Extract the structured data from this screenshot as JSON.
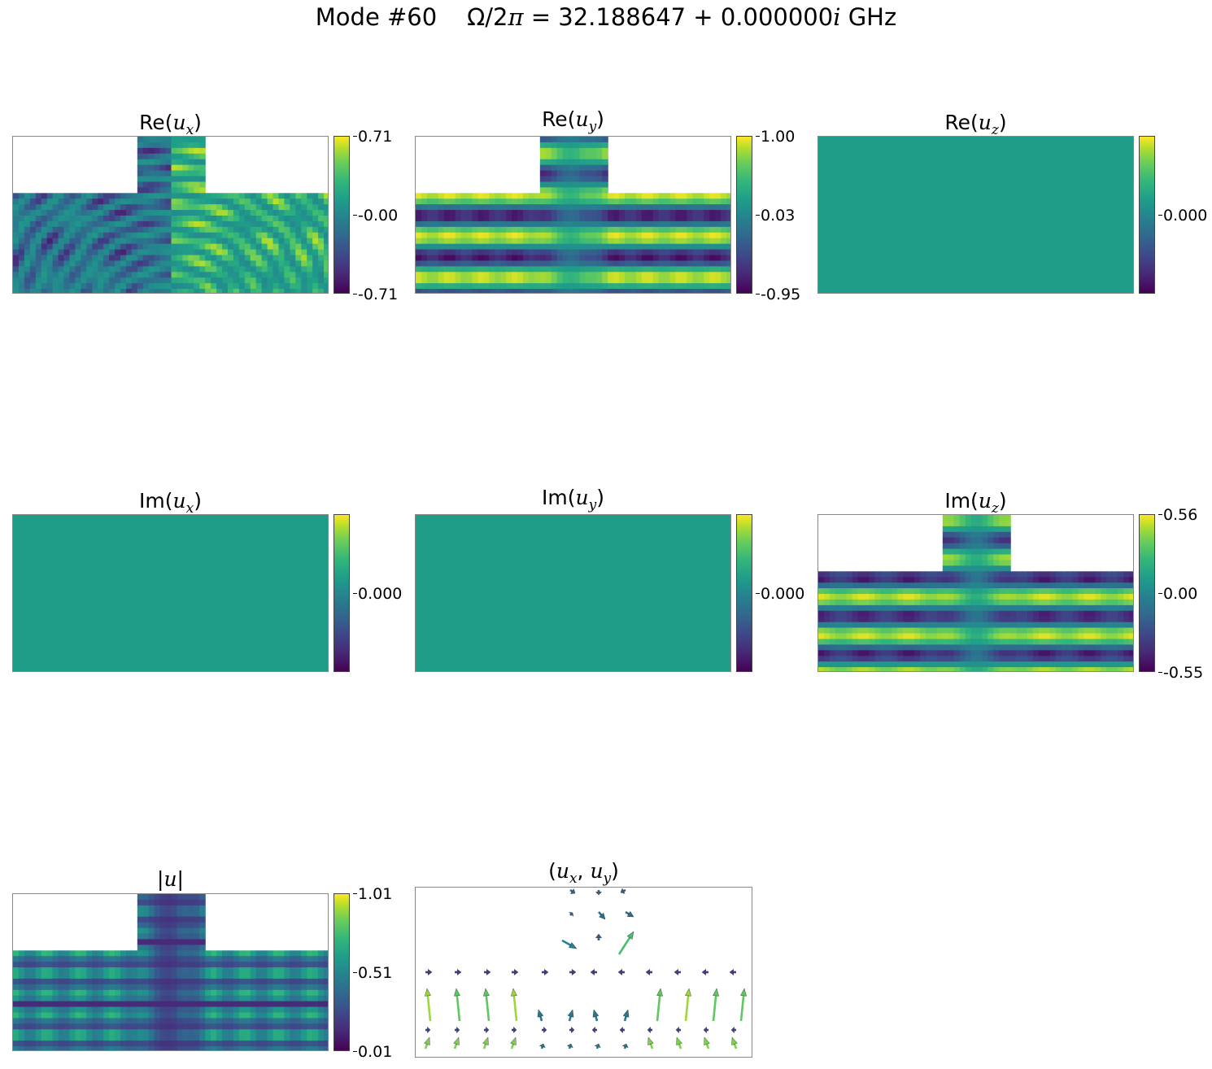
{
  "figure": {
    "mode_label": "Mode #60",
    "freq_lhs": "Ω/2",
    "freq_pi": "π",
    "freq_rhs": " = 32.188647 + 0.000000",
    "freq_i": "i",
    "freq_unit": " GHz"
  },
  "chart_data": [
    {
      "type": "heatmap",
      "title_prefix": "Re(",
      "var": "u",
      "sub": "x",
      "title_suffix": ")",
      "pattern": "ux",
      "colorbar_ticks": [
        "0.71",
        "-0.00",
        "-0.71"
      ],
      "colormap": "viridis"
    },
    {
      "type": "heatmap",
      "title_prefix": "Re(",
      "var": "u",
      "sub": "y",
      "title_suffix": ")",
      "pattern": "uy",
      "colorbar_ticks": [
        "1.00",
        "0.03",
        "-0.95"
      ],
      "colormap": "viridis"
    },
    {
      "type": "heatmap",
      "title_prefix": "Re(",
      "var": "u",
      "sub": "z",
      "title_suffix": ")",
      "pattern": "flat",
      "colorbar_ticks": [
        "0.000"
      ],
      "colormap": "viridis"
    },
    {
      "type": "heatmap",
      "title_prefix": "Im(",
      "var": "u",
      "sub": "x",
      "title_suffix": ")",
      "pattern": "flat",
      "colorbar_ticks": [
        "0.000"
      ],
      "colormap": "viridis"
    },
    {
      "type": "heatmap",
      "title_prefix": "Im(",
      "var": "u",
      "sub": "y",
      "title_suffix": ")",
      "pattern": "flat",
      "colorbar_ticks": [
        "0.000"
      ],
      "colormap": "viridis"
    },
    {
      "type": "heatmap",
      "title_prefix": "Im(",
      "var": "u",
      "sub": "z",
      "title_suffix": ")",
      "pattern": "uz",
      "colorbar_ticks": [
        "0.56",
        "0.00",
        "-0.55"
      ],
      "colormap": "viridis"
    },
    {
      "type": "heatmap",
      "title_prefix": "|",
      "var": "u",
      "sub": "",
      "title_suffix": "|",
      "pattern": "abs",
      "colorbar_ticks": [
        "1.01",
        "0.51",
        "0.01"
      ],
      "colormap": "viridis"
    },
    {
      "type": "quiver",
      "title_prefix": "(",
      "var": "u",
      "sub": "x",
      "var2": "u",
      "sub2": "y",
      "title_suffix": ")"
    }
  ]
}
